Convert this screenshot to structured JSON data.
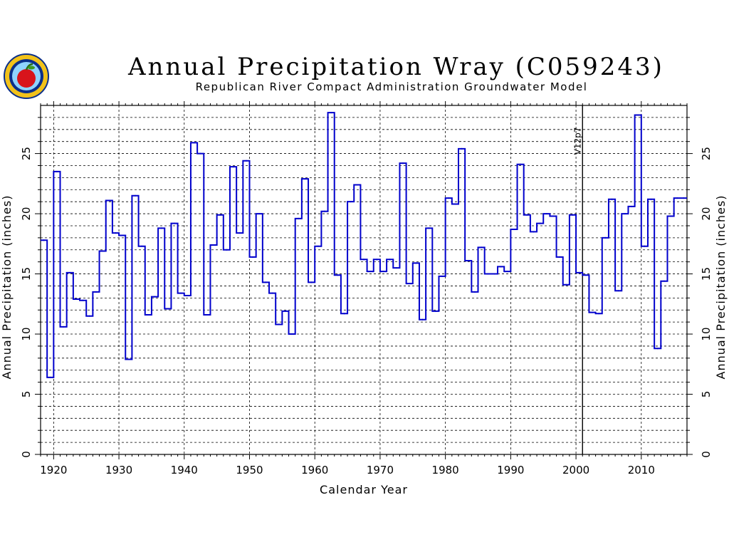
{
  "title": "Annual Precipitation Wray (C059243)",
  "subtitle": "Republican River Compact Administration Groundwater Model",
  "chart_data": {
    "type": "line",
    "step": true,
    "title": "Annual Precipitation Wray (C059243)",
    "subtitle": "Republican River Compact Administration Groundwater Model",
    "xlabel": "Calendar Year",
    "ylabel": "Annual Precipitation (inches)",
    "ylabel_right": "Annual Precipitation (inches)",
    "xlim": [
      1918,
      2017
    ],
    "ylim": [
      0,
      29
    ],
    "x_ticks": [
      1920,
      1930,
      1940,
      1950,
      1960,
      1970,
      1980,
      1990,
      2000,
      2010
    ],
    "y_ticks": [
      0,
      5,
      10,
      15,
      20,
      25
    ],
    "grid": true,
    "vline": {
      "x": 2001,
      "label": "V12p7"
    },
    "series": [
      {
        "color": "#0000cc",
        "x": [
          1918,
          1919,
          1920,
          1921,
          1922,
          1923,
          1924,
          1925,
          1926,
          1927,
          1928,
          1929,
          1930,
          1931,
          1932,
          1933,
          1934,
          1935,
          1936,
          1937,
          1938,
          1939,
          1940,
          1941,
          1942,
          1943,
          1944,
          1945,
          1946,
          1947,
          1948,
          1949,
          1950,
          1951,
          1952,
          1953,
          1954,
          1955,
          1956,
          1957,
          1958,
          1959,
          1960,
          1961,
          1962,
          1963,
          1964,
          1965,
          1966,
          1967,
          1968,
          1969,
          1970,
          1971,
          1972,
          1973,
          1974,
          1975,
          1976,
          1977,
          1978,
          1979,
          1980,
          1981,
          1982,
          1983,
          1984,
          1985,
          1986,
          1987,
          1988,
          1989,
          1990,
          1991,
          1992,
          1993,
          1994,
          1995,
          1996,
          1997,
          1998,
          1999,
          2000,
          2001,
          2002,
          2003,
          2004,
          2005,
          2006,
          2007,
          2008,
          2009,
          2010,
          2011,
          2012,
          2013,
          2014,
          2015,
          2016
        ],
        "y": [
          17.8,
          6.4,
          23.5,
          10.6,
          15.1,
          12.9,
          12.8,
          11.5,
          13.5,
          16.9,
          21.1,
          18.4,
          18.2,
          7.9,
          21.5,
          17.3,
          11.6,
          13.1,
          18.8,
          12.1,
          19.2,
          13.4,
          13.2,
          25.9,
          25.0,
          11.6,
          17.4,
          19.9,
          17.0,
          23.9,
          18.4,
          24.4,
          16.4,
          20.0,
          14.3,
          13.4,
          10.8,
          11.9,
          10.0,
          19.6,
          22.9,
          14.3,
          17.3,
          20.2,
          28.4,
          14.9,
          11.7,
          21.0,
          22.4,
          16.2,
          15.2,
          16.2,
          15.2,
          16.2,
          15.5,
          24.2,
          14.2,
          15.9,
          11.2,
          18.8,
          11.9,
          14.8,
          21.3,
          20.8,
          25.4,
          16.1,
          13.5,
          17.2,
          15.0,
          15.0,
          15.6,
          15.2,
          18.7,
          24.1,
          19.9,
          18.5,
          19.2,
          20.0,
          19.8,
          16.4,
          14.1,
          19.9,
          15.1,
          14.9,
          11.8,
          11.7,
          18.0,
          21.2,
          13.6,
          20.0,
          20.6,
          28.2,
          17.3,
          21.2,
          8.8,
          14.4,
          19.8,
          21.3,
          21.3
        ]
      }
    ]
  }
}
